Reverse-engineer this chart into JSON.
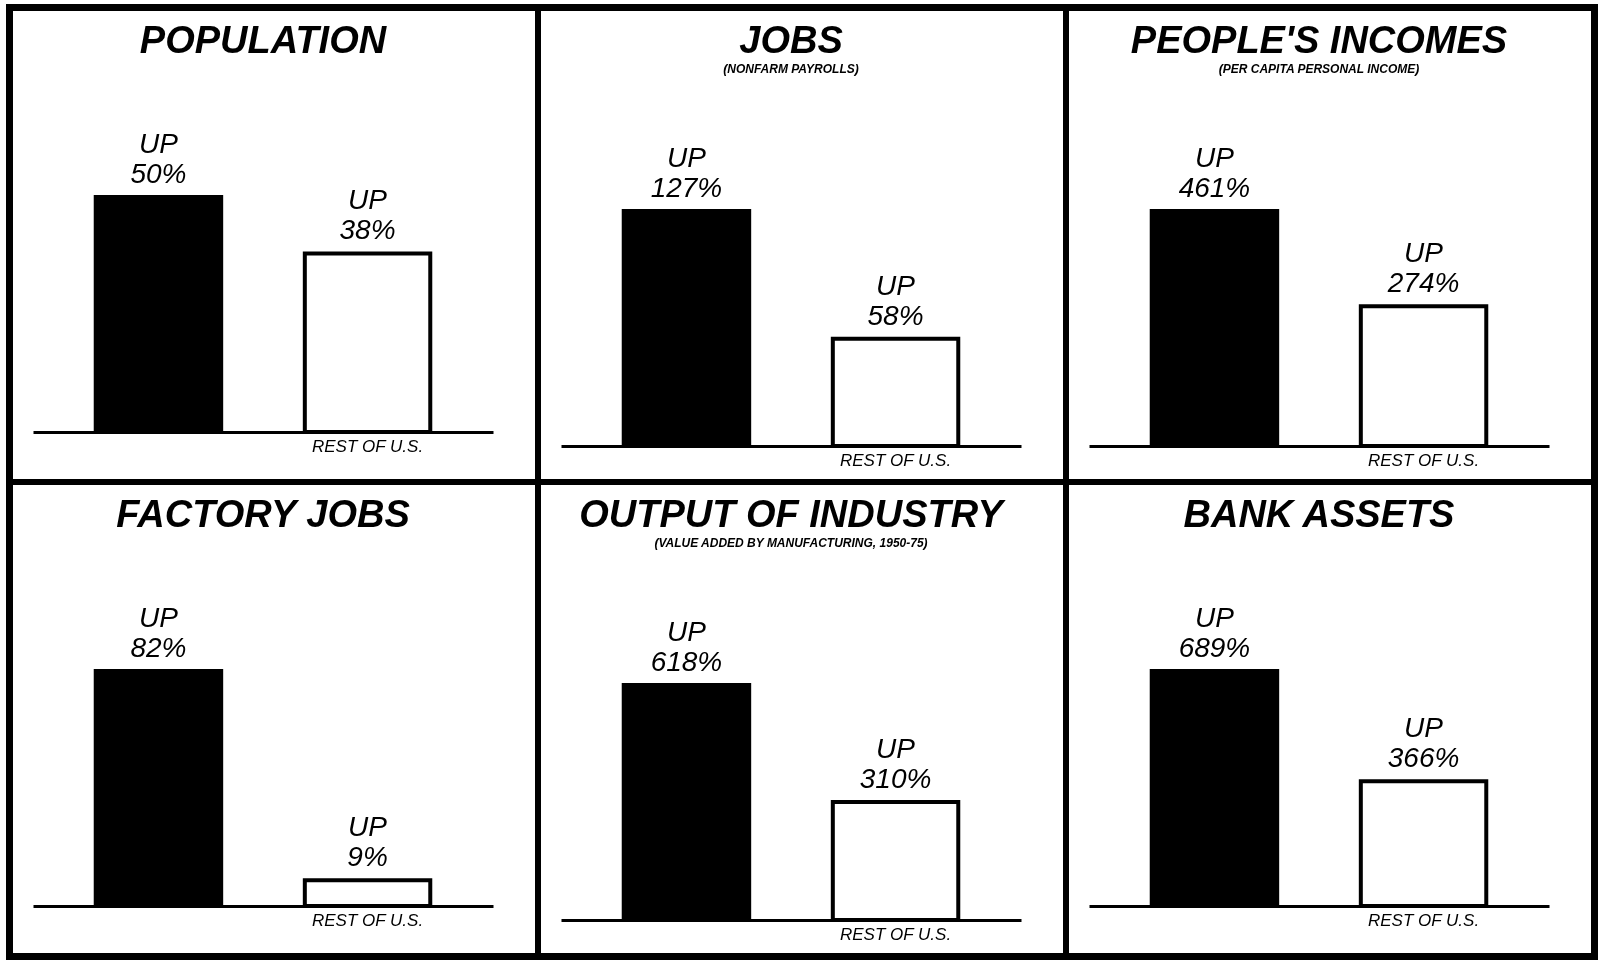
{
  "chart_data": [
    {
      "type": "bar",
      "title": "POPULATION",
      "categories": [
        null,
        "REST OF U.S."
      ],
      "values": [
        50,
        38
      ],
      "colors": [
        "#000000",
        "#ffffff"
      ],
      "value_labels": [
        "UP\n50%",
        "UP\n38%"
      ]
    },
    {
      "type": "bar",
      "title": "JOBS",
      "subtitle": "(NONFARM PAYROLLS)",
      "categories": [
        null,
        "REST OF U.S."
      ],
      "values": [
        127,
        58
      ],
      "colors": [
        "#000000",
        "#ffffff"
      ],
      "value_labels": [
        "UP\n127%",
        "UP\n58%"
      ]
    },
    {
      "type": "bar",
      "title": "PEOPLE'S INCOMES",
      "subtitle": "(PER CAPITA PERSONAL INCOME)",
      "categories": [
        null,
        "REST OF U.S."
      ],
      "values": [
        461,
        274
      ],
      "colors": [
        "#000000",
        "#ffffff"
      ],
      "value_labels": [
        "UP\n461%",
        "UP\n274%"
      ]
    },
    {
      "type": "bar",
      "title": "FACTORY JOBS",
      "categories": [
        null,
        "REST OF U.S."
      ],
      "values": [
        82,
        9
      ],
      "colors": [
        "#000000",
        "#ffffff"
      ],
      "value_labels": [
        "UP\n82%",
        "UP\n9%"
      ]
    },
    {
      "type": "bar",
      "title": "OUTPUT OF INDUSTRY",
      "subtitle": "(VALUE ADDED BY MANUFACTURING, 1950-75)",
      "categories": [
        null,
        "REST OF U.S."
      ],
      "values": [
        618,
        310
      ],
      "colors": [
        "#000000",
        "#ffffff"
      ],
      "value_labels": [
        "UP\n618%",
        "UP\n310%"
      ]
    },
    {
      "type": "bar",
      "title": "BANK ASSETS",
      "categories": [
        null,
        "REST OF U.S."
      ],
      "values": [
        689,
        366
      ],
      "colors": [
        "#000000",
        "#ffffff"
      ],
      "value_labels": [
        "UP\n689%",
        "UP\n366%"
      ]
    }
  ]
}
